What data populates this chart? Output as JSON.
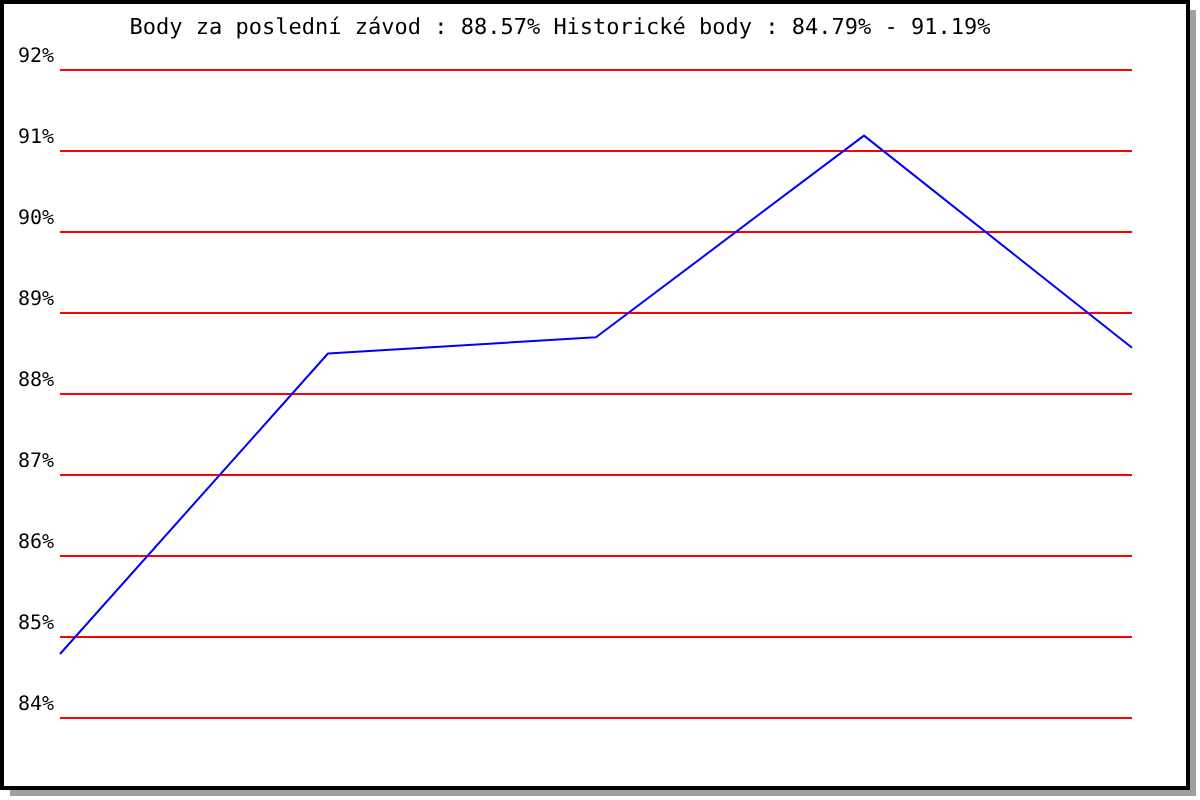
{
  "chart_data": {
    "type": "line",
    "title": "Body za poslední závod : 88.57%  Historické body : 84.79% - 91.19%",
    "categories": [
      null,
      null,
      null,
      null,
      null
    ],
    "series": [
      {
        "color": "#0000ff",
        "values": [
          84.79,
          88.5,
          88.7,
          91.19,
          88.57
        ]
      }
    ],
    "ylim": [
      84,
      92
    ],
    "yticks": [
      {
        "value": 84,
        "label": "84%"
      },
      {
        "value": 85,
        "label": "85%"
      },
      {
        "value": 86,
        "label": "86%"
      },
      {
        "value": 87,
        "label": "87%"
      },
      {
        "value": 88,
        "label": "88%"
      },
      {
        "value": 89,
        "label": "89%"
      },
      {
        "value": 90,
        "label": "90%"
      },
      {
        "value": 91,
        "label": "91%"
      },
      {
        "value": 92,
        "label": "92%"
      }
    ],
    "grid": "y",
    "marker": "none",
    "line_style": "solid"
  }
}
